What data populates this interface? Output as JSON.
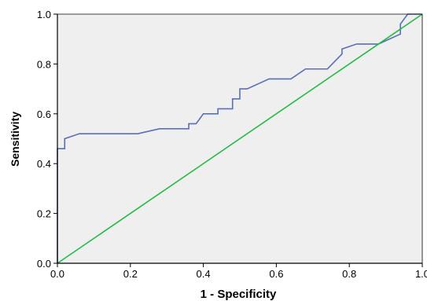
{
  "chart_data": {
    "type": "line",
    "title": "",
    "xlabel": "1 - Specificity",
    "ylabel": "Sensitivity",
    "xlim": [
      0.0,
      1.0
    ],
    "ylim": [
      0.0,
      1.0
    ],
    "x_ticks": [
      "0.0",
      "0.2",
      "0.4",
      "0.6",
      "0.8",
      "1.0"
    ],
    "y_ticks": [
      "0.0",
      "0.2",
      "0.4",
      "0.6",
      "0.8",
      "1.0"
    ],
    "grid": false,
    "legend": "none",
    "plot_background": "#efefef",
    "series": [
      {
        "color": "#5a6fb8",
        "step": true,
        "points": [
          [
            0.0,
            0.0
          ],
          [
            0.0,
            0.46
          ],
          [
            0.02,
            0.46
          ],
          [
            0.02,
            0.5
          ],
          [
            0.06,
            0.52
          ],
          [
            0.22,
            0.52
          ],
          [
            0.28,
            0.54
          ],
          [
            0.36,
            0.54
          ],
          [
            0.36,
            0.56
          ],
          [
            0.38,
            0.56
          ],
          [
            0.4,
            0.6
          ],
          [
            0.44,
            0.6
          ],
          [
            0.44,
            0.62
          ],
          [
            0.48,
            0.62
          ],
          [
            0.48,
            0.66
          ],
          [
            0.5,
            0.66
          ],
          [
            0.5,
            0.7
          ],
          [
            0.52,
            0.7
          ],
          [
            0.58,
            0.74
          ],
          [
            0.64,
            0.74
          ],
          [
            0.68,
            0.78
          ],
          [
            0.74,
            0.78
          ],
          [
            0.78,
            0.84
          ],
          [
            0.78,
            0.86
          ],
          [
            0.82,
            0.88
          ],
          [
            0.88,
            0.88
          ],
          [
            0.94,
            0.92
          ],
          [
            0.94,
            0.96
          ],
          [
            0.96,
            1.0
          ],
          [
            1.0,
            1.0
          ]
        ]
      },
      {
        "color": "#22bb44",
        "step": false,
        "points": [
          [
            0.0,
            0.0
          ],
          [
            1.0,
            1.0
          ]
        ]
      }
    ]
  }
}
